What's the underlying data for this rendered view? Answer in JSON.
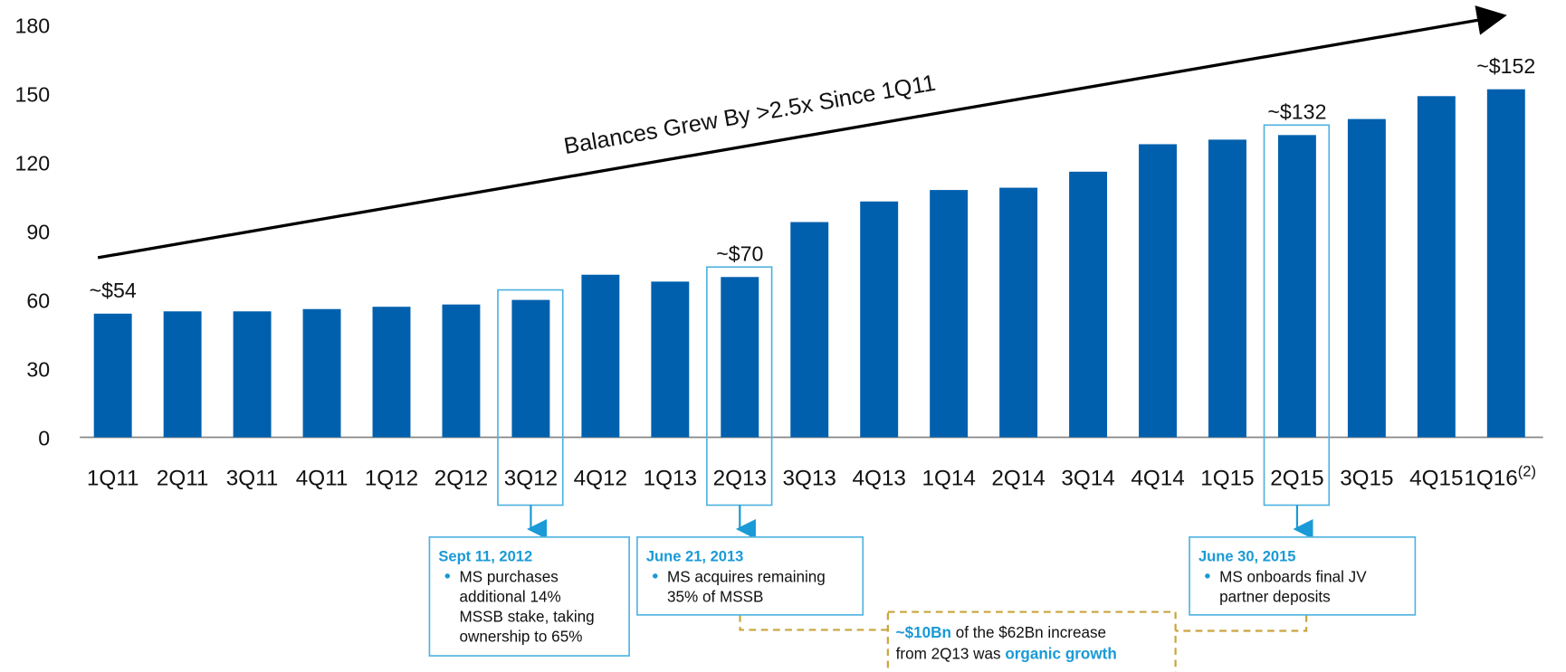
{
  "chart_data": {
    "type": "bar",
    "categories": [
      "1Q11",
      "2Q11",
      "3Q11",
      "4Q11",
      "1Q12",
      "2Q12",
      "3Q12",
      "4Q12",
      "1Q13",
      "2Q13",
      "3Q13",
      "4Q13",
      "1Q14",
      "2Q14",
      "3Q14",
      "4Q14",
      "1Q15",
      "2Q15",
      "3Q15",
      "4Q15",
      "1Q16"
    ],
    "last_category_superscript": "(2)",
    "values": [
      54,
      55,
      55,
      56,
      57,
      58,
      60,
      71,
      68,
      70,
      94,
      103,
      108,
      109,
      116,
      128,
      130,
      132,
      139,
      149,
      152
    ],
    "value_labels": [
      "~$54",
      null,
      null,
      null,
      null,
      null,
      null,
      null,
      null,
      "~$70",
      null,
      null,
      null,
      null,
      null,
      null,
      null,
      "~$132",
      null,
      null,
      "~$152"
    ],
    "color": "#0060ae",
    "ylim": [
      0,
      180
    ],
    "yticks": [
      0,
      30,
      60,
      90,
      120,
      150,
      180
    ],
    "grid": false,
    "trend_annotation": "Balances Grew By >2.5x Since 1Q11",
    "callouts": [
      {
        "category": "3Q12",
        "title": "Sept 11, 2012",
        "lines": [
          "MS purchases",
          "additional 14%",
          "MSSB stake, taking",
          "ownership to 65%"
        ]
      },
      {
        "category": "2Q13",
        "title": "June 21, 2013",
        "lines": [
          "MS acquires remaining",
          "35% of MSSB"
        ]
      },
      {
        "category": "2Q15",
        "title": "June 30, 2015",
        "lines": [
          "MS onboards final JV",
          "partner deposits"
        ]
      }
    ],
    "note": {
      "line1": [
        {
          "text": "~$10Bn",
          "bold": true
        },
        {
          "text": " of the $62Bn increase",
          "bold": false
        }
      ],
      "line2": [
        {
          "text": "from 2Q13 was ",
          "bold": false
        },
        {
          "text": "organic growth",
          "bold": true
        }
      ]
    }
  }
}
